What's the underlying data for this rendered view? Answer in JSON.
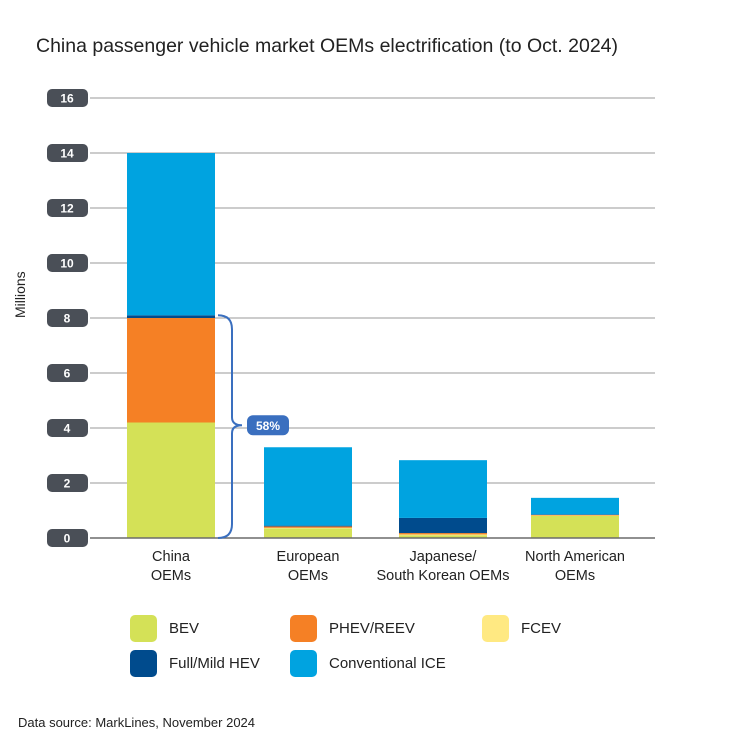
{
  "title": "China passenger vehicle market OEMs electrification (to Oct. 2024)",
  "source": "Data source: MarkLines, November 2024",
  "colors": {
    "BEV": "#d4e157",
    "PHEV/REEV": "#f58025",
    "FCEV": "#ffe982",
    "Full/Mild HEV": "#004b8d",
    "Conventional ICE": "#00a3e0",
    "tick_box": "#4a4f57",
    "grid": "#9a9a9a",
    "bracket": "#3a6fbf"
  },
  "chart_data": {
    "type": "bar",
    "stacked": true,
    "ylabel": "Millions",
    "xlabel": "",
    "ylim": [
      0,
      16
    ],
    "yticks": [
      "0",
      "2",
      "4",
      "6",
      "8",
      "10",
      "12",
      "14",
      "16"
    ],
    "categories": [
      [
        "China",
        "OEMs"
      ],
      [
        "European",
        "OEMs"
      ],
      [
        "Japanese/",
        "South Korean OEMs"
      ],
      [
        "North American",
        "OEMs"
      ]
    ],
    "series": [
      {
        "name": "BEV",
        "values": [
          4.2,
          0.35,
          0.1,
          0.8
        ]
      },
      {
        "name": "FCEV",
        "values": [
          0,
          0.02,
          0.03,
          0.02
        ]
      },
      {
        "name": "PHEV/REEV",
        "values": [
          3.8,
          0.05,
          0.05,
          0.02
        ]
      },
      {
        "name": "Full/Mild HEV",
        "values": [
          0.1,
          0.03,
          0.55,
          0.02
        ]
      },
      {
        "name": "Conventional ICE",
        "values": [
          5.9,
          2.85,
          2.1,
          0.6
        ]
      }
    ],
    "annotations": [
      {
        "text": "58%",
        "category_index": 0,
        "from": 0,
        "to": 8.1
      }
    ],
    "grid": true,
    "legend_position": "bottom"
  },
  "legend": [
    {
      "name": "BEV"
    },
    {
      "name": "PHEV/REEV"
    },
    {
      "name": "FCEV"
    },
    {
      "name": "Full/Mild HEV"
    },
    {
      "name": "Conventional ICE"
    }
  ]
}
